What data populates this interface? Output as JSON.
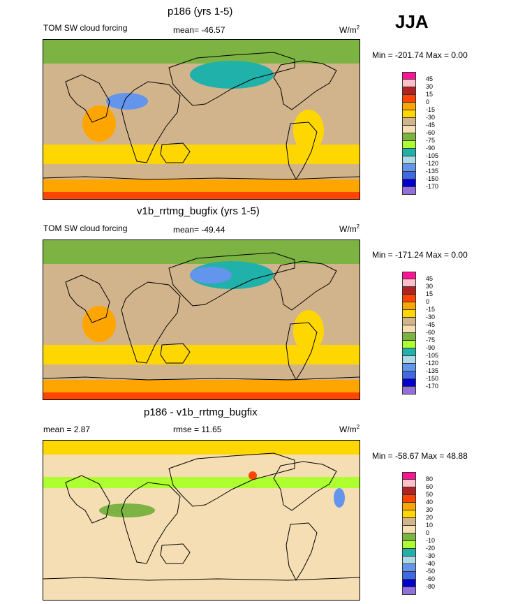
{
  "season": "JJA",
  "panels": [
    {
      "title": "p186 (yrs 1-5)",
      "left_label": "TOM SW cloud forcing",
      "center_label": "mean= -46.57",
      "units_base": "W/m",
      "units_exp": "2",
      "minmax": "Min = -201.74 Max =   0.00"
    },
    {
      "title": "v1b_rrtmg_bugfix (yrs 1-5)",
      "left_label": "TOM SW cloud forcing",
      "center_label": "mean= -49.44",
      "units_base": "W/m",
      "units_exp": "2",
      "minmax": "Min = -171.24 Max =   0.00"
    },
    {
      "title": "p186 - v1b_rrtmg_bugfix",
      "left_label": "mean =   2.87",
      "center_label": "rmse =  11.65",
      "units_base": "W/m",
      "units_exp": "2",
      "minmax": "Min = -58.67 Max =  48.88"
    }
  ],
  "chart_data": [
    {
      "type": "heatmap",
      "title": "p186 (yrs 1-5)",
      "variable": "TOM SW cloud forcing",
      "units": "W/m2",
      "mean": -46.57,
      "min": -201.74,
      "max": 0.0,
      "legend_levels": [
        "45",
        "30",
        "15",
        "0",
        "-15",
        "-30",
        "-45",
        "-60",
        "-75",
        "-90",
        "-105",
        "-120",
        "-135",
        "-150",
        "-170"
      ],
      "legend_colors": [
        "#ff1493",
        "#ffc0cb",
        "#b22222",
        "#ff4500",
        "#ffa500",
        "#ffd700",
        "#d2b48c",
        "#f5deb3",
        "#7cb342",
        "#adff2f",
        "#20b2aa",
        "#add8e6",
        "#6495ed",
        "#4169e1",
        "#0000cd",
        "#9370db"
      ]
    },
    {
      "type": "heatmap",
      "title": "v1b_rrtmg_bugfix (yrs 1-5)",
      "variable": "TOM SW cloud forcing",
      "units": "W/m2",
      "mean": -49.44,
      "min": -171.24,
      "max": 0.0,
      "legend_levels": [
        "45",
        "30",
        "15",
        "0",
        "-15",
        "-30",
        "-45",
        "-60",
        "-75",
        "-90",
        "-105",
        "-120",
        "-135",
        "-150",
        "-170"
      ],
      "legend_colors": [
        "#ff1493",
        "#ffc0cb",
        "#b22222",
        "#ff4500",
        "#ffa500",
        "#ffd700",
        "#d2b48c",
        "#f5deb3",
        "#7cb342",
        "#adff2f",
        "#20b2aa",
        "#add8e6",
        "#6495ed",
        "#4169e1",
        "#0000cd",
        "#9370db"
      ]
    },
    {
      "type": "heatmap",
      "title": "p186 - v1b_rrtmg_bugfix",
      "units": "W/m2",
      "mean": 2.87,
      "rmse": 11.65,
      "min": -58.67,
      "max": 48.88,
      "legend_levels": [
        "80",
        "60",
        "50",
        "40",
        "30",
        "20",
        "10",
        "0",
        "-10",
        "-20",
        "-30",
        "-40",
        "-50",
        "-60",
        "-80"
      ],
      "legend_colors": [
        "#ff1493",
        "#ffc0cb",
        "#b22222",
        "#ff4500",
        "#ffa500",
        "#ffd700",
        "#d2b48c",
        "#f5deb3",
        "#7cb342",
        "#adff2f",
        "#20b2aa",
        "#add8e6",
        "#6495ed",
        "#4169e1",
        "#0000cd",
        "#9370db"
      ]
    }
  ]
}
